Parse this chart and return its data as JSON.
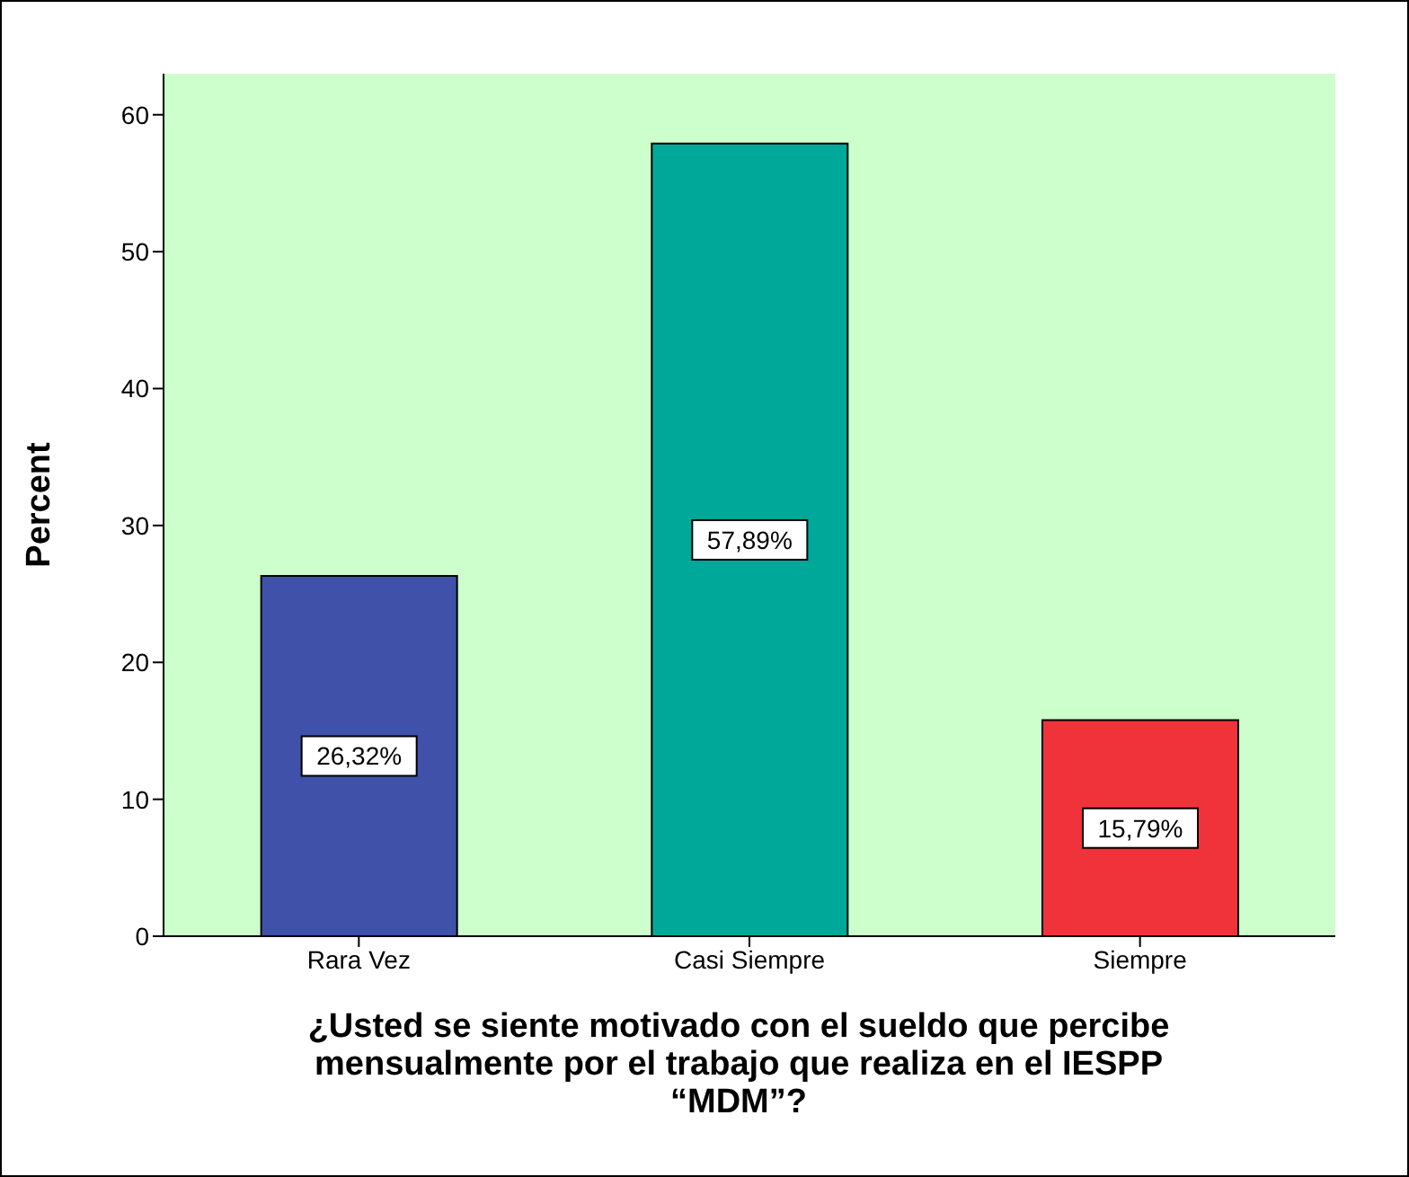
{
  "chart_data": {
    "type": "bar",
    "ylabel": "Percent",
    "xlabel": "¿Usted se siente motivado con el sueldo que percibe mensualmente por el trabajo que realiza en el IESPP “MDM”?",
    "categories": [
      "Rara Vez",
      "Casi Siempre",
      "Siempre"
    ],
    "values": [
      26.32,
      57.89,
      15.79
    ],
    "value_labels": [
      "26,32%",
      "57,89%",
      "15,79%"
    ],
    "colors": [
      "#3f51a8",
      "#00a89a",
      "#f0333a"
    ],
    "ylim": [
      0,
      63
    ],
    "yticks": [
      0,
      10,
      20,
      30,
      40,
      50,
      60
    ]
  }
}
